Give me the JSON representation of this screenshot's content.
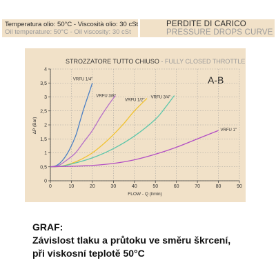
{
  "header": {
    "line1": "Temperatura olio: 50°C - Viscosità olio: 30 cSt",
    "line2": "Oil temperature: 50°C - Oil viscosity: 30 cSt",
    "title1": "PERDITE DI CARICO",
    "title2": "PRESSURE DROPS CURVE"
  },
  "chart_data": {
    "type": "line",
    "title": "STROZZATORE TUTTO CHIUSO",
    "subtitle": "FULLY CLOSED THROTTLE",
    "annotation": "A-B",
    "xlabel": "FLOW - Q (l/min)",
    "ylabel": "ΔP (Bar)",
    "xlim": [
      0,
      90
    ],
    "ylim": [
      0,
      4
    ],
    "xticks": [
      "0",
      "10",
      "20",
      "30",
      "40",
      "50",
      "60",
      "70",
      "80",
      "90"
    ],
    "yticks": [
      "0",
      "0,5",
      "1",
      "1,5",
      "2",
      "2,5",
      "3",
      "3,5",
      "4"
    ],
    "grid": true,
    "series": [
      {
        "name": "VRFU 1/4\"",
        "color": "#4a7fc4",
        "x": [
          0,
          3,
          6,
          9,
          12,
          14,
          16,
          18,
          20
        ],
        "y": [
          0.5,
          0.55,
          0.75,
          1.1,
          1.6,
          2.1,
          2.6,
          3.05,
          3.5
        ]
      },
      {
        "name": "VRFU 3/8\"",
        "color": "#b56fc8",
        "x": [
          0,
          4,
          8,
          12,
          16,
          20,
          24,
          28,
          31
        ],
        "y": [
          0.5,
          0.55,
          0.75,
          1.0,
          1.4,
          1.8,
          2.3,
          2.75,
          3.05
        ]
      },
      {
        "name": "VRFU 1/2\"",
        "color": "#f0c231",
        "x": [
          0,
          5,
          10,
          15,
          20,
          25,
          30,
          35,
          40,
          46
        ],
        "y": [
          0.5,
          0.52,
          0.62,
          0.78,
          1.0,
          1.3,
          1.65,
          2.05,
          2.5,
          2.95
        ]
      },
      {
        "name": "VRFU 3/4\"",
        "color": "#5cc6aa",
        "x": [
          0,
          5,
          10,
          20,
          30,
          40,
          50,
          55,
          59
        ],
        "y": [
          0.5,
          0.52,
          0.6,
          0.82,
          1.15,
          1.6,
          2.2,
          2.65,
          3.05
        ]
      },
      {
        "name": "VRFU 1\"",
        "color": "#b24ec4",
        "x": [
          0,
          10,
          20,
          30,
          40,
          50,
          60,
          70,
          80
        ],
        "y": [
          0.5,
          0.52,
          0.55,
          0.62,
          0.75,
          0.95,
          1.2,
          1.5,
          1.8
        ]
      }
    ]
  },
  "caption": {
    "line1": "GRAF:",
    "line2": "Závislost tlaku a průtoku ve směru škrcení,",
    "line3": "při viskosní teplotě 50°C"
  }
}
